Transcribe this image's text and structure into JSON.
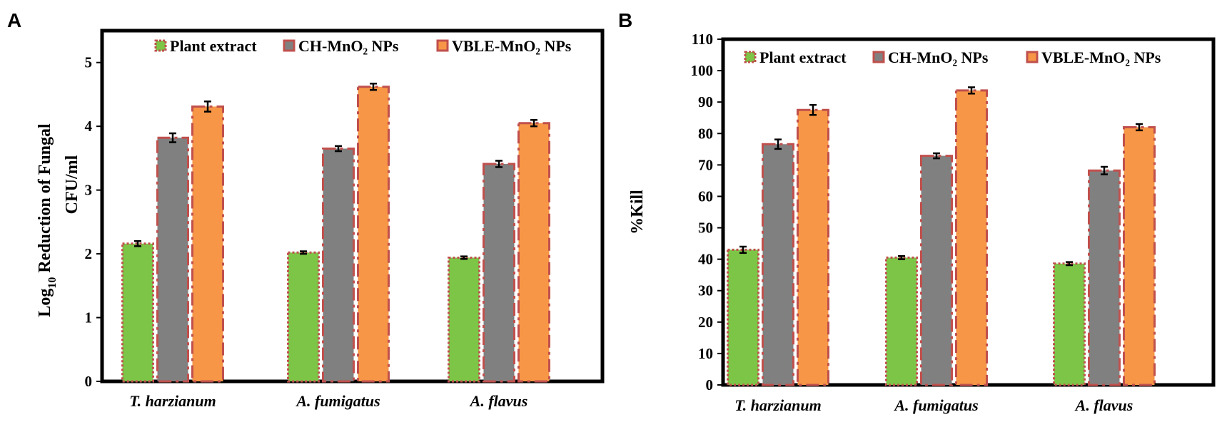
{
  "chart_data": [
    {
      "panel": "A",
      "type": "bar",
      "categories": [
        "T. harzianum",
        "A. fumigatus",
        "A. flavus"
      ],
      "ylabel_main": "Log",
      "ylabel_sub": "10",
      "ylabel_rest": " Reduction of Fungal",
      "ylabel_line2": "CFU/ml",
      "ylim": [
        0,
        5.5
      ],
      "yticks": [
        "0",
        "1",
        "2",
        "3",
        "4",
        "5"
      ],
      "series": [
        {
          "name": "Plant extract",
          "color": "#7dc547",
          "border": "#c0504d",
          "values": [
            2.16,
            2.02,
            1.94
          ],
          "errors": [
            0.04,
            0.02,
            0.02
          ]
        },
        {
          "name": "CH-MnO₂ NPs",
          "color": "#808080",
          "border": "#c0504d",
          "values": [
            3.82,
            3.65,
            3.41
          ],
          "errors": [
            0.07,
            0.04,
            0.05
          ]
        },
        {
          "name": "VBLE-MnO₂ NPs",
          "color": "#f79646",
          "border": "#c0504d",
          "values": [
            4.31,
            4.62,
            4.05
          ],
          "errors": [
            0.08,
            0.05,
            0.05
          ]
        }
      ]
    },
    {
      "panel": "B",
      "type": "bar",
      "categories": [
        "T. harzianum",
        "A. fumigatus",
        "A. flavus"
      ],
      "ylabel": "%Kill",
      "ylim": [
        0,
        110
      ],
      "yticks": [
        "0",
        "10",
        "20",
        "30",
        "40",
        "50",
        "60",
        "70",
        "80",
        "90",
        "100",
        "110"
      ],
      "series": [
        {
          "name": "Plant extract",
          "color": "#7dc547",
          "border": "#c0504d",
          "values": [
            43.0,
            40.5,
            38.6
          ],
          "errors": [
            1.0,
            0.5,
            0.5
          ]
        },
        {
          "name": "CH-MnO₂ NPs",
          "color": "#808080",
          "border": "#c0504d",
          "values": [
            76.6,
            72.9,
            68.2
          ],
          "errors": [
            1.5,
            0.8,
            1.2
          ]
        },
        {
          "name": "VBLE-MnO₂ NPs",
          "color": "#f79646",
          "border": "#c0504d",
          "values": [
            87.5,
            93.7,
            82.0
          ],
          "errors": [
            1.6,
            1.0,
            1.0
          ]
        }
      ]
    }
  ]
}
